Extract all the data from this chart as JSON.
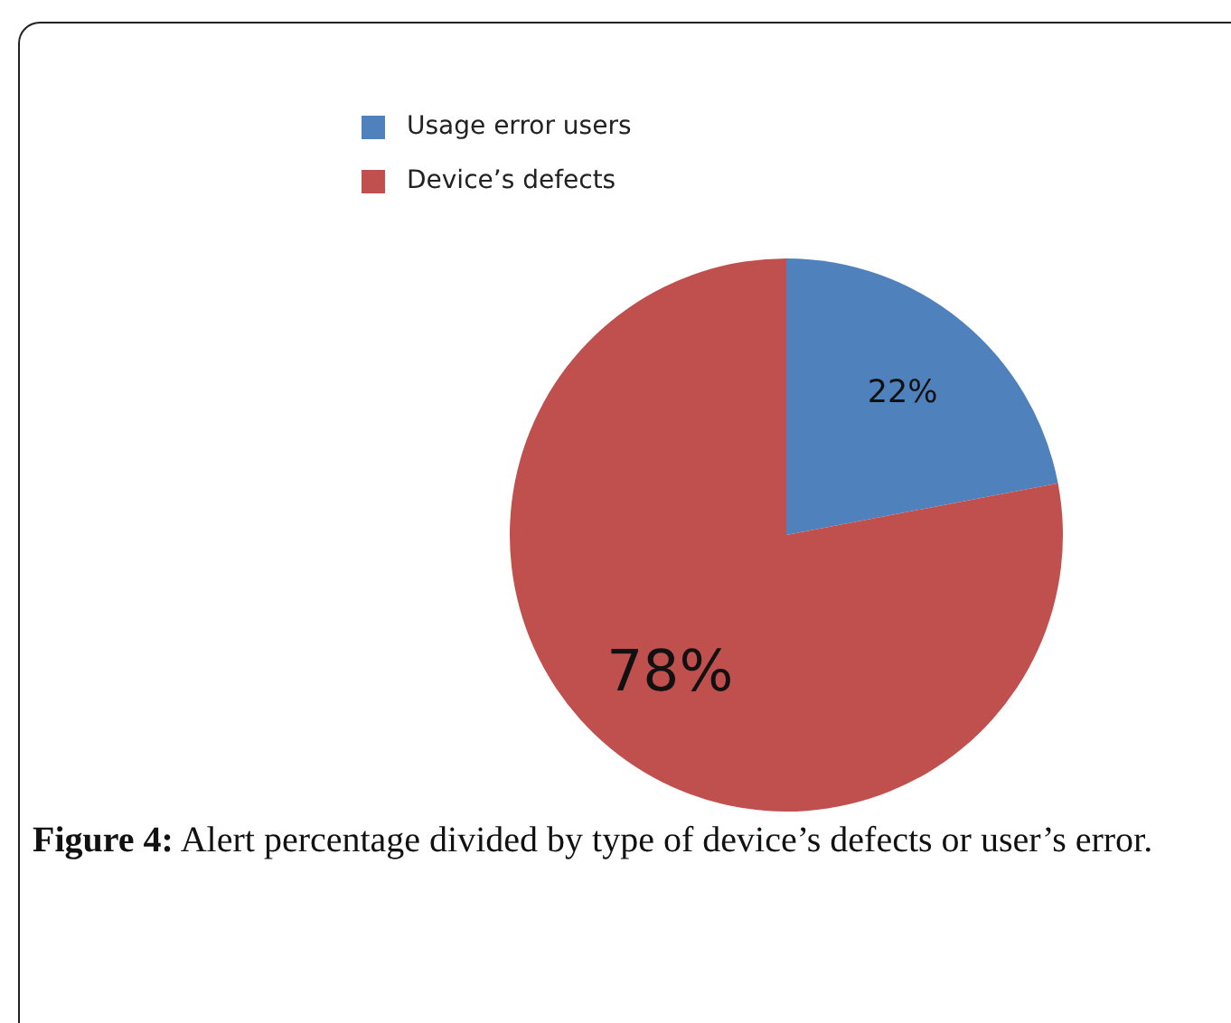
{
  "chart_data": {
    "type": "pie",
    "categories": [
      "Usage error users",
      "Device’s defects"
    ],
    "values": [
      22,
      78
    ],
    "colors": [
      "#4f81bd",
      "#c0504d"
    ],
    "value_labels": [
      "22%",
      "78%"
    ],
    "legend": "top left",
    "annotations": [
      "Figure 4: Alert percentage divided by type of device’s defects or user’s error."
    ]
  }
}
